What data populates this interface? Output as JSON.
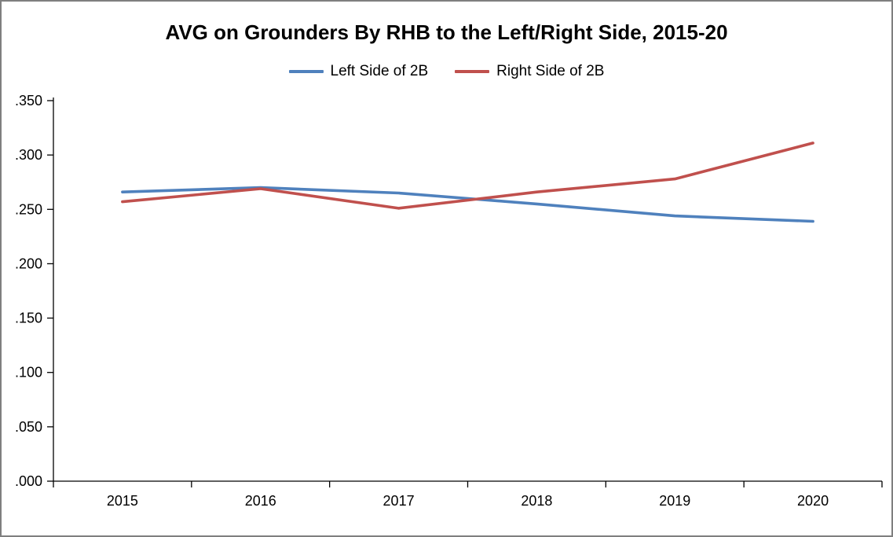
{
  "chart_data": {
    "type": "line",
    "title": "AVG on Grounders By RHB to the Left/Right Side, 2015-20",
    "categories": [
      "2015",
      "2016",
      "2017",
      "2018",
      "2019",
      "2020"
    ],
    "series": [
      {
        "name": "Left Side of 2B",
        "color": "#4F81BD",
        "values": [
          0.266,
          0.27,
          0.265,
          0.255,
          0.244,
          0.239
        ]
      },
      {
        "name": "Right Side of 2B",
        "color": "#C0504D",
        "values": [
          0.257,
          0.269,
          0.251,
          0.266,
          0.278,
          0.311
        ]
      }
    ],
    "ylim": [
      0,
      0.35
    ],
    "y_ticks": [
      0,
      0.05,
      0.1,
      0.15,
      0.2,
      0.25,
      0.3,
      0.35
    ],
    "y_tick_labels": [
      ".000",
      ".050",
      ".100",
      ".150",
      ".200",
      ".250",
      ".300",
      ".350"
    ],
    "xlabel": "",
    "ylabel": "",
    "grid": false,
    "legend_position": "top",
    "axis_color": "#000000",
    "border_color": "#7f7f7f"
  }
}
